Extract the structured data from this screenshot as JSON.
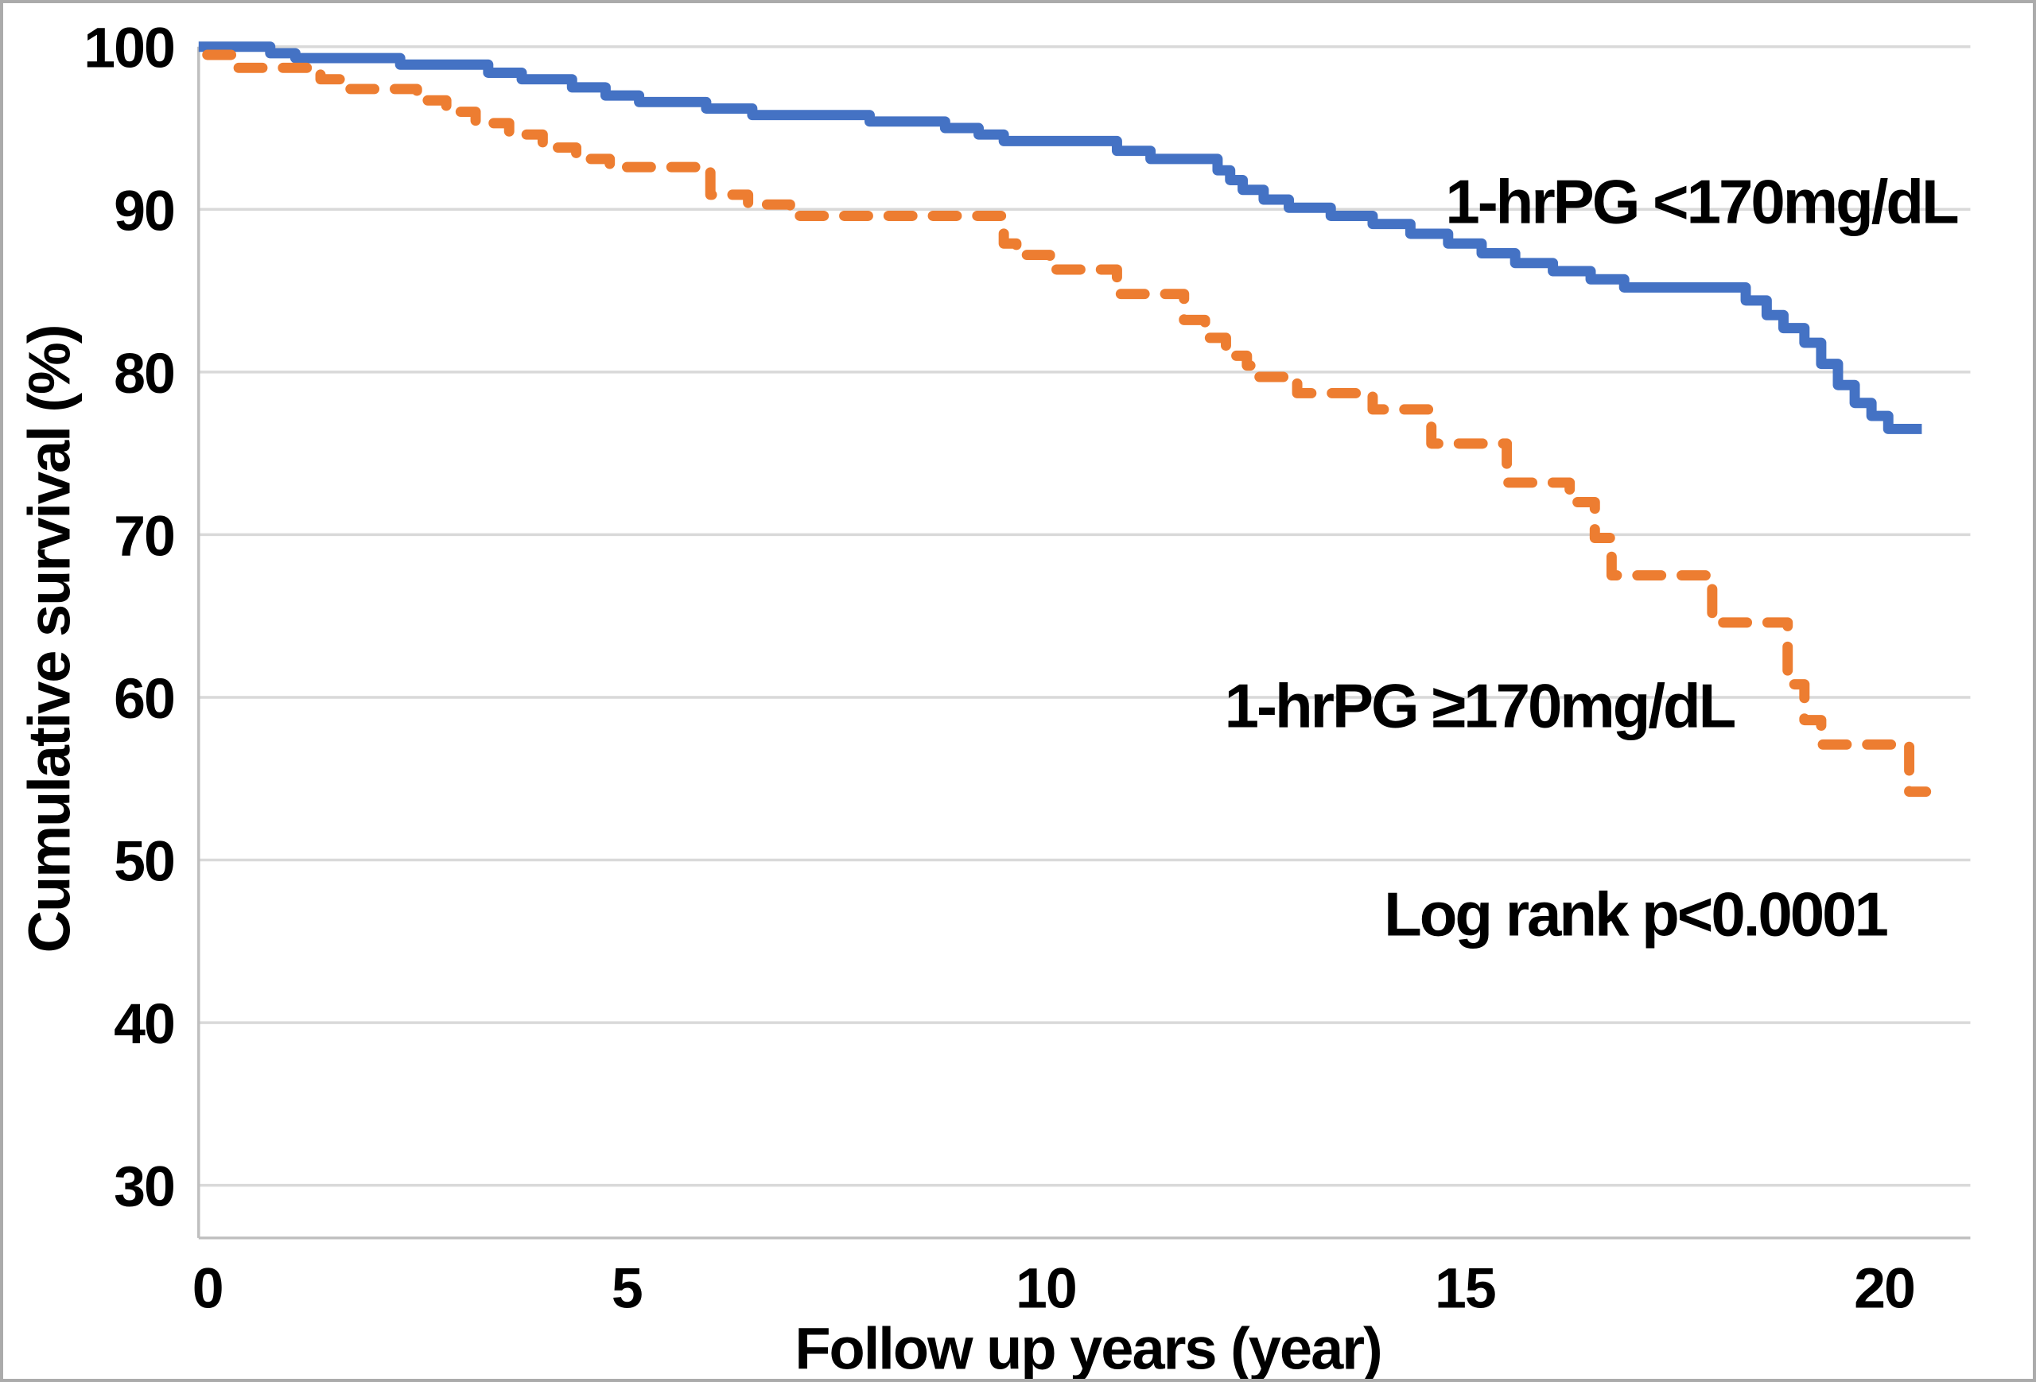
{
  "figure": {
    "background_color": "#ffffff",
    "border_color": "#ababab"
  },
  "chart_data": {
    "type": "line",
    "subtype": "kaplan-meier-step-survival",
    "title": "",
    "xlabel": "Follow up years (year)",
    "ylabel": "Cumulative survival (%)",
    "x_ticks": [
      0,
      5,
      10,
      15,
      20
    ],
    "y_ticks": [
      100,
      90,
      80,
      70,
      60,
      50,
      40,
      30
    ],
    "xlim": [
      -0.1,
      21.0
    ],
    "ylim": [
      27,
      100
    ],
    "grid": "horizontal",
    "grid_color": "#d9d9d9",
    "axis_color": "#bfbfbf",
    "text_color": "#000000",
    "legend_position": "inline-annotations",
    "log_rank_text": "Log rank p<0.0001",
    "series": [
      {
        "label": "1-hrPG <170mg/dL",
        "color": "#4472c4",
        "line_style": "solid",
        "end_year": 20.45,
        "steps": [
          [
            0,
            100
          ],
          [
            0.75,
            99.6
          ],
          [
            1.05,
            99.3
          ],
          [
            2.3,
            98.9
          ],
          [
            3.35,
            98.4
          ],
          [
            3.75,
            98.0
          ],
          [
            4.35,
            97.5
          ],
          [
            4.75,
            97.0
          ],
          [
            5.15,
            96.6
          ],
          [
            5.95,
            96.2
          ],
          [
            6.5,
            95.8
          ],
          [
            7.9,
            95.4
          ],
          [
            8.8,
            95.0
          ],
          [
            9.2,
            94.6
          ],
          [
            9.5,
            94.2
          ],
          [
            10.85,
            93.6
          ],
          [
            11.25,
            93.1
          ],
          [
            12.05,
            92.4
          ],
          [
            12.2,
            91.8
          ],
          [
            12.35,
            91.2
          ],
          [
            12.6,
            90.6
          ],
          [
            12.9,
            90.1
          ],
          [
            13.4,
            89.6
          ],
          [
            13.9,
            89.1
          ],
          [
            14.35,
            88.5
          ],
          [
            14.8,
            87.9
          ],
          [
            15.2,
            87.3
          ],
          [
            15.6,
            86.7
          ],
          [
            16.05,
            86.2
          ],
          [
            16.5,
            85.7
          ],
          [
            16.9,
            85.2
          ],
          [
            18.35,
            84.4
          ],
          [
            18.6,
            83.5
          ],
          [
            18.8,
            82.7
          ],
          [
            19.05,
            81.8
          ],
          [
            19.25,
            80.5
          ],
          [
            19.45,
            79.2
          ],
          [
            19.65,
            78.1
          ],
          [
            19.85,
            77.3
          ],
          [
            20.05,
            76.5
          ]
        ]
      },
      {
        "label": "1-hrPG ≥170mg/dL",
        "color": "#ed7d31",
        "line_style": "dashed",
        "end_year": 20.5,
        "steps": [
          [
            0,
            99.5
          ],
          [
            0.3,
            98.7
          ],
          [
            1.35,
            98.0
          ],
          [
            1.7,
            97.4
          ],
          [
            2.5,
            96.7
          ],
          [
            2.85,
            96.0
          ],
          [
            3.2,
            95.3
          ],
          [
            3.6,
            94.6
          ],
          [
            4.0,
            93.8
          ],
          [
            4.4,
            93.1
          ],
          [
            4.8,
            92.6
          ],
          [
            6.0,
            90.9
          ],
          [
            6.45,
            90.3
          ],
          [
            6.95,
            89.6
          ],
          [
            9.5,
            87.9
          ],
          [
            9.65,
            87.2
          ],
          [
            10.05,
            86.3
          ],
          [
            10.85,
            84.8
          ],
          [
            11.65,
            83.2
          ],
          [
            11.9,
            82.1
          ],
          [
            12.15,
            81.0
          ],
          [
            12.4,
            80.4
          ],
          [
            12.55,
            79.7
          ],
          [
            13.0,
            78.7
          ],
          [
            13.9,
            77.7
          ],
          [
            14.6,
            75.6
          ],
          [
            15.5,
            73.2
          ],
          [
            16.25,
            72.0
          ],
          [
            16.55,
            69.8
          ],
          [
            16.75,
            67.5
          ],
          [
            17.95,
            64.6
          ],
          [
            18.85,
            60.8
          ],
          [
            19.05,
            58.6
          ],
          [
            19.25,
            57.1
          ],
          [
            20.3,
            54.2
          ]
        ]
      }
    ]
  }
}
